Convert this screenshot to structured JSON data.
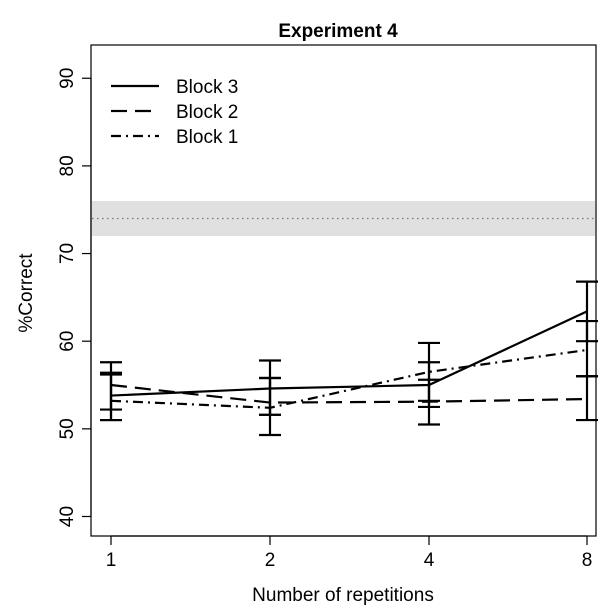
{
  "chart_data": {
    "type": "line",
    "title": "Experiment 4",
    "xlabel": "Number of repetitions",
    "ylabel": "%Correct",
    "categories": [
      "1",
      "2",
      "4",
      "8"
    ],
    "ylim": [
      38,
      92
    ],
    "yticks": [
      40,
      50,
      60,
      70,
      80,
      90
    ],
    "grid": false,
    "legend_position": "top-left",
    "reference_band": {
      "low": 72,
      "high": 76,
      "center": 74,
      "color": "#e0e0e0"
    },
    "series": [
      {
        "name": "Block 3",
        "style": "solid",
        "values": [
          53.8,
          54.6,
          55.0,
          63.4
        ],
        "err_low": [
          51.0,
          51.6,
          52.5,
          60.0
        ],
        "err_high": [
          56.2,
          57.8,
          57.6,
          66.8
        ]
      },
      {
        "name": "Block 2",
        "style": "dashed",
        "values": [
          55.0,
          53.0,
          53.1,
          53.4
        ],
        "err_low": [
          52.2,
          49.3,
          50.5,
          51.0
        ],
        "err_high": [
          57.6,
          55.8,
          55.6,
          56.0
        ]
      },
      {
        "name": "Block 1",
        "style": "dotdash",
        "values": [
          53.2,
          52.4,
          56.5,
          59.0
        ],
        "err_low": [
          51.0,
          51.6,
          53.2,
          56.0
        ],
        "err_high": [
          56.4,
          55.8,
          59.8,
          62.3
        ]
      }
    ]
  }
}
